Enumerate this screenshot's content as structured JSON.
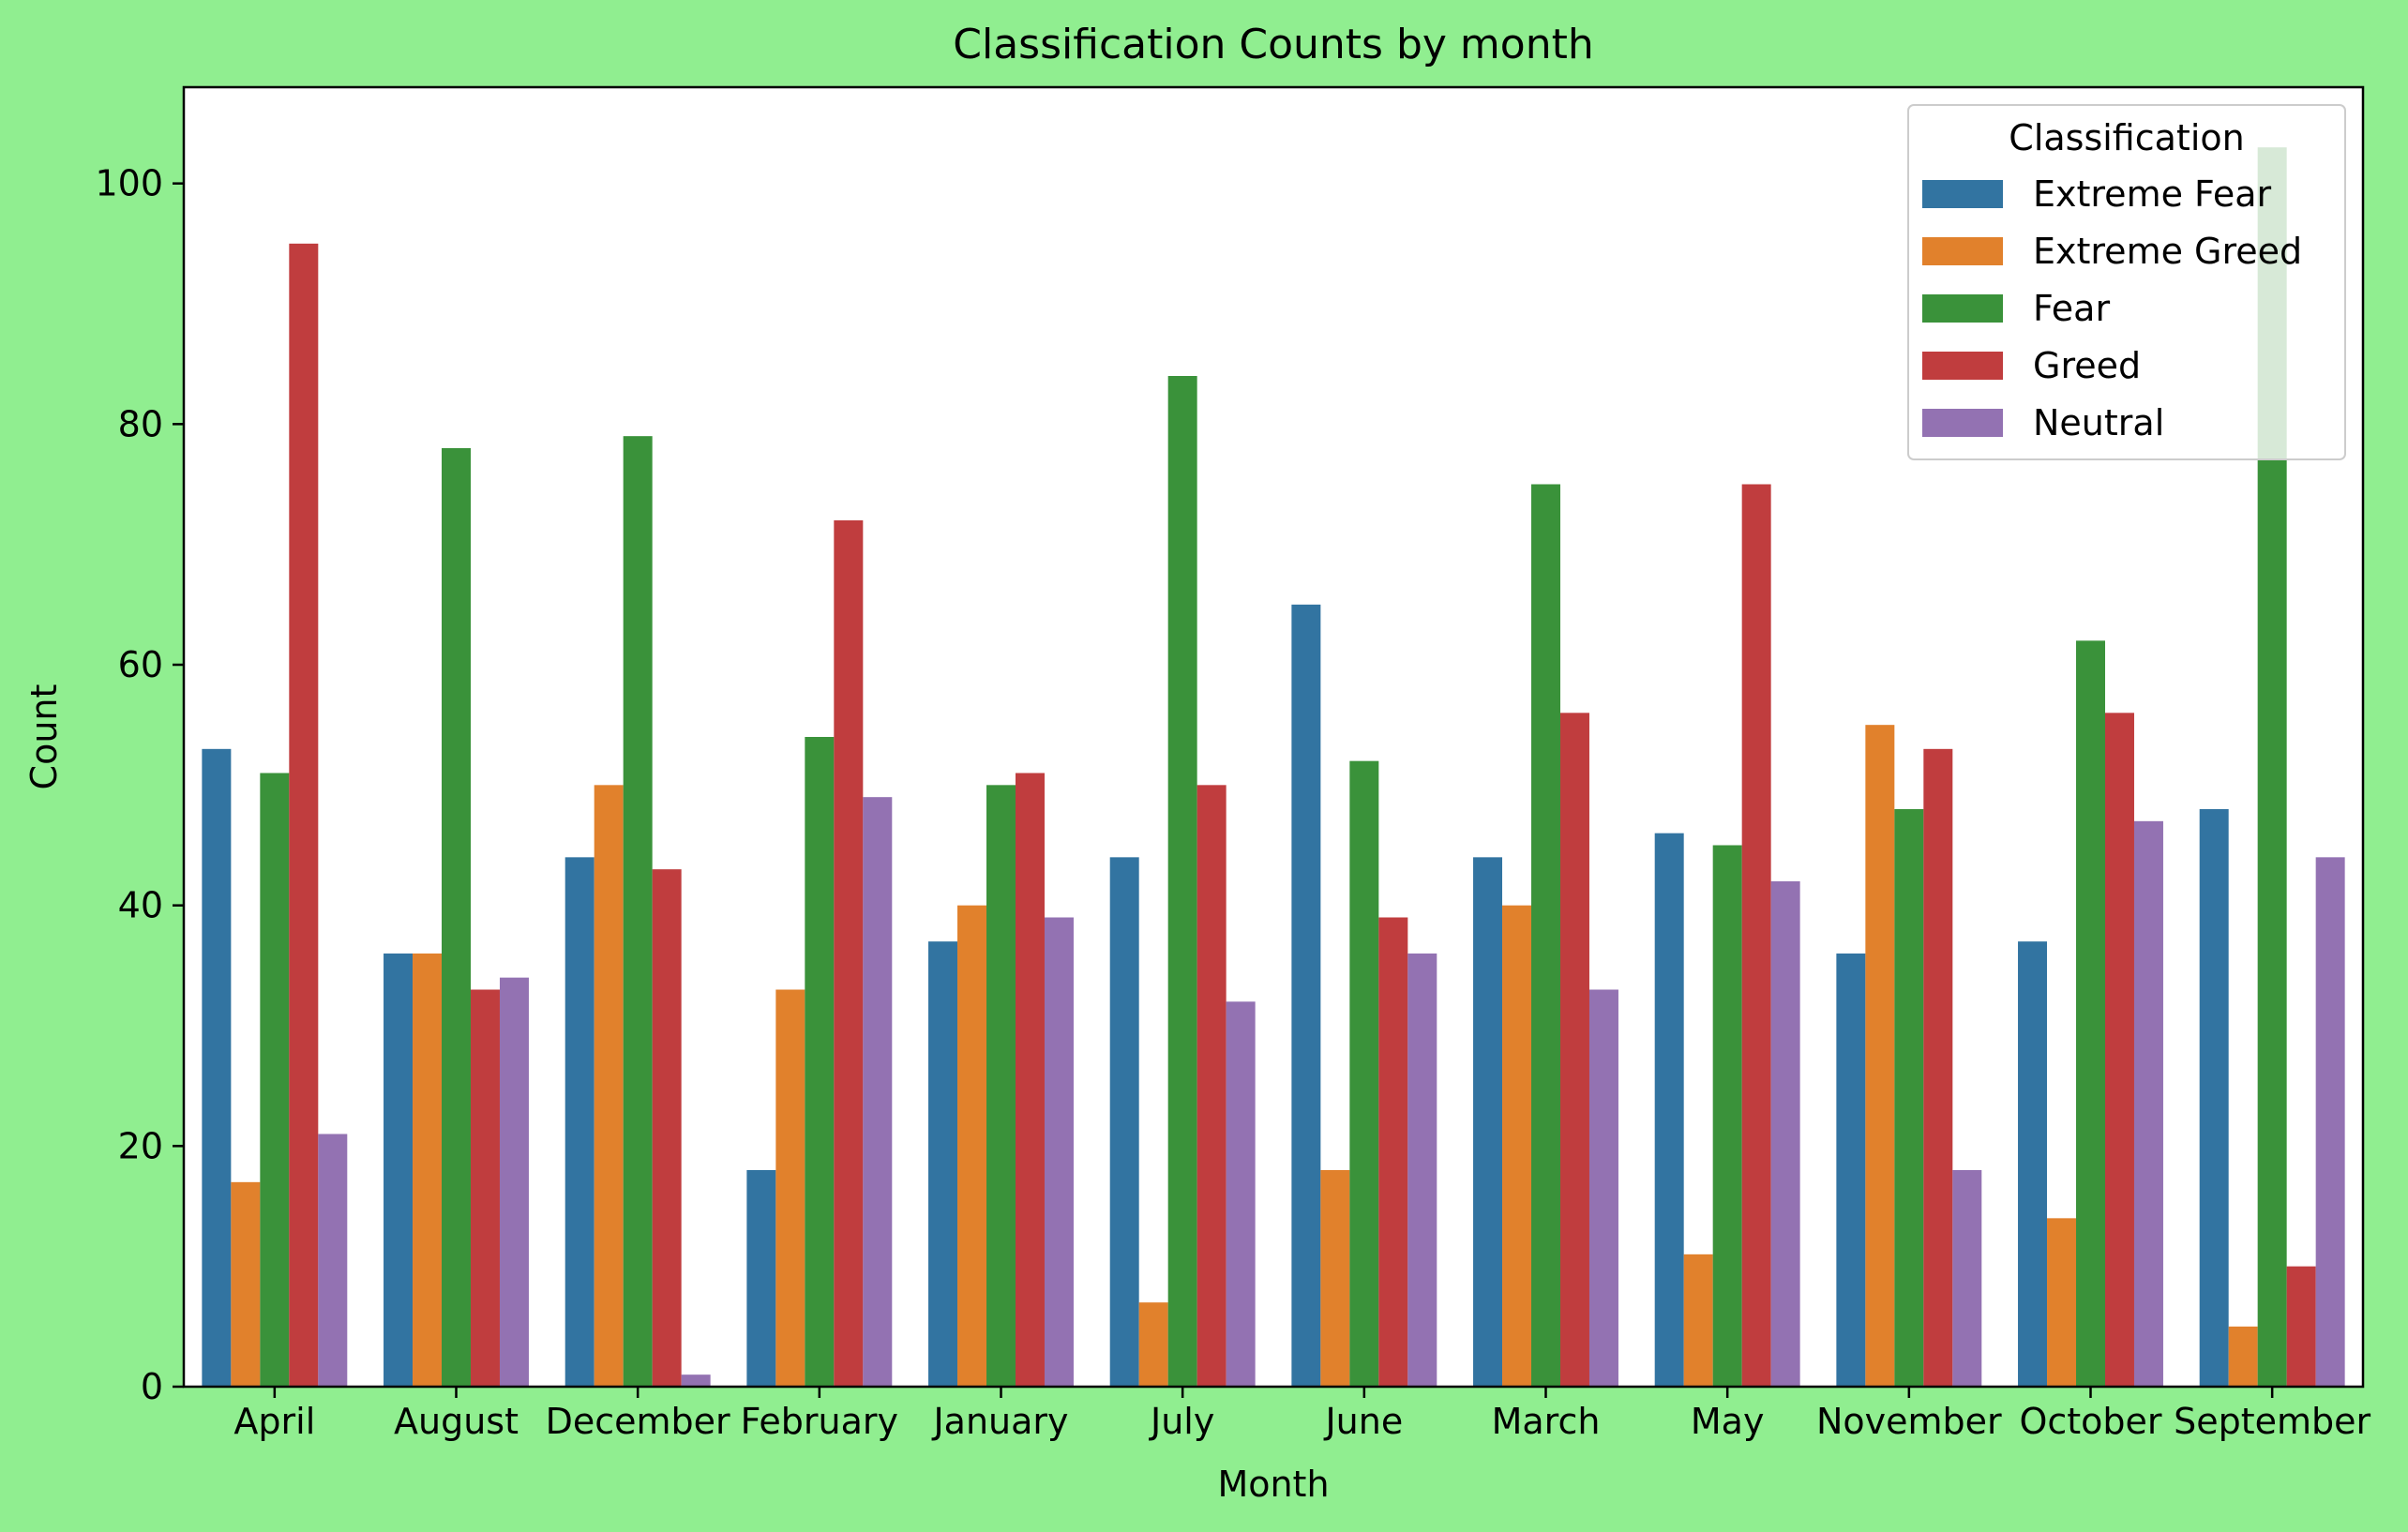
{
  "chart_data": {
    "type": "bar",
    "title": "Classification Counts by month",
    "xlabel": "Month",
    "ylabel": "Count",
    "ylim": [
      0,
      108
    ],
    "yticks": [
      0,
      20,
      40,
      60,
      80,
      100
    ],
    "grid": false,
    "categories": [
      "April",
      "August",
      "December",
      "February",
      "January",
      "July",
      "June",
      "March",
      "May",
      "November",
      "October",
      "September"
    ],
    "legend": {
      "title": "Classification",
      "placement": "top-right"
    },
    "series": [
      {
        "name": "Extreme Fear",
        "color": "#3274a1",
        "values": [
          53,
          36,
          44,
          18,
          37,
          44,
          65,
          44,
          46,
          36,
          37,
          48
        ]
      },
      {
        "name": "Extreme Greed",
        "color": "#e1812c",
        "values": [
          17,
          36,
          50,
          33,
          40,
          7,
          18,
          40,
          11,
          55,
          14,
          5
        ]
      },
      {
        "name": "Fear",
        "color": "#3a923a",
        "values": [
          51,
          78,
          79,
          54,
          50,
          84,
          52,
          75,
          45,
          48,
          62,
          103
        ]
      },
      {
        "name": "Greed",
        "color": "#c03d3e",
        "values": [
          95,
          33,
          43,
          72,
          51,
          50,
          39,
          56,
          75,
          53,
          56,
          10
        ]
      },
      {
        "name": "Neutral",
        "color": "#9372b2",
        "values": [
          21,
          34,
          1,
          49,
          39,
          32,
          36,
          33,
          42,
          18,
          47,
          44
        ]
      }
    ]
  }
}
